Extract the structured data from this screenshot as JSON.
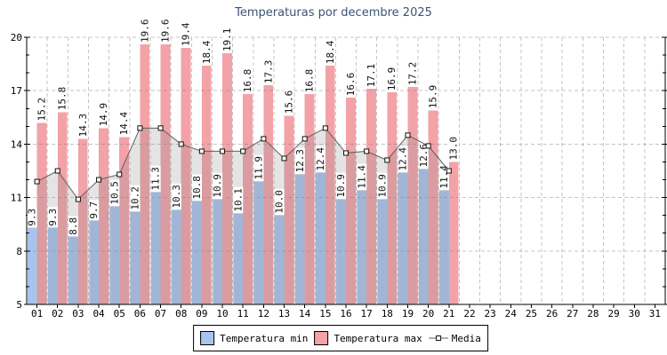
{
  "title": "Temperaturas por decembre 2025",
  "chart_data": {
    "type": "bar",
    "title": "Temperaturas por decembre 2025",
    "categories": [
      "01",
      "02",
      "03",
      "04",
      "05",
      "06",
      "07",
      "08",
      "09",
      "10",
      "11",
      "12",
      "13",
      "14",
      "15",
      "16",
      "17",
      "18",
      "19",
      "20",
      "21",
      "22",
      "23",
      "24",
      "25",
      "26",
      "27",
      "28",
      "29",
      "30",
      "31"
    ],
    "series": [
      {
        "name": "Temperatura min",
        "type": "bar",
        "color": "#a8c4ee",
        "values": [
          9.3,
          9.3,
          8.8,
          9.7,
          10.5,
          10.2,
          11.3,
          10.3,
          10.8,
          10.9,
          10.1,
          11.9,
          10.0,
          12.3,
          12.4,
          10.9,
          11.4,
          10.9,
          12.4,
          12.6,
          11.4
        ]
      },
      {
        "name": "Temperatura max",
        "type": "bar",
        "color": "#f3a2a7",
        "values": [
          15.2,
          15.8,
          14.3,
          14.9,
          14.4,
          19.6,
          19.6,
          19.4,
          18.4,
          19.1,
          16.8,
          17.3,
          15.6,
          16.8,
          18.4,
          16.6,
          17.1,
          16.9,
          17.2,
          15.9,
          13.0
        ]
      },
      {
        "name": "Media",
        "type": "line",
        "color": "#5f5f5f",
        "marker": "open-square",
        "area_fill": "#8c8c8c",
        "values": [
          11.9,
          12.5,
          10.9,
          12.0,
          12.3,
          14.9,
          14.9,
          14.0,
          13.6,
          13.6,
          13.6,
          14.3,
          13.2,
          14.3,
          14.9,
          13.5,
          13.6,
          13.1,
          14.5,
          13.9,
          12.5
        ]
      }
    ],
    "xlabel": "",
    "ylabel": "",
    "ylim": [
      5,
      20
    ],
    "yticks": [
      5,
      8,
      11,
      14,
      17,
      20
    ],
    "grid": true,
    "grid_color": "#c6c6c6",
    "legend_position": "bottom",
    "title_color": "#3c5377",
    "bar_label_decimals": 1
  }
}
